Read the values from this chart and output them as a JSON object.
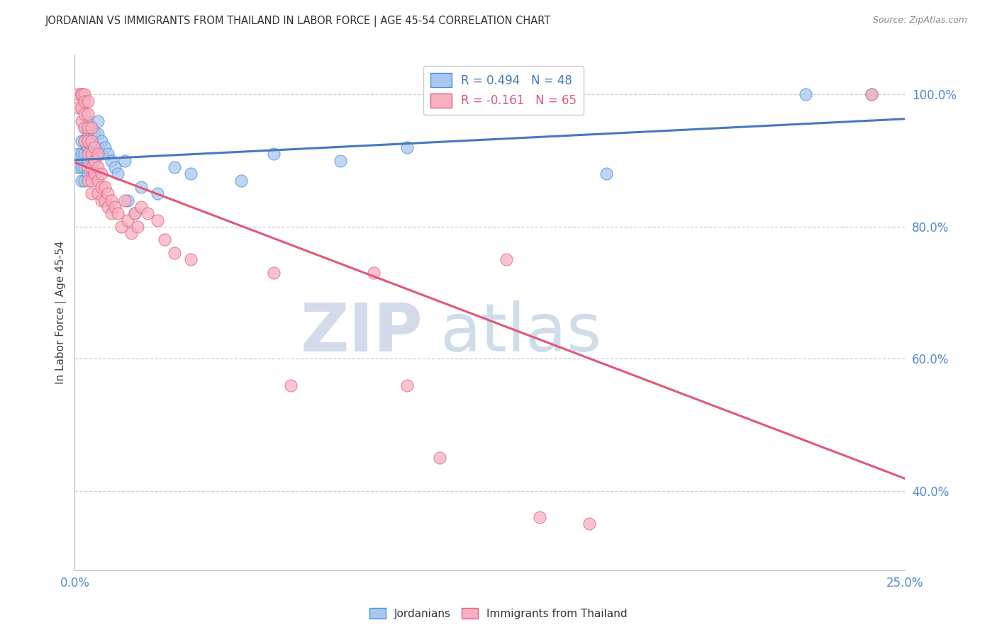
{
  "title": "JORDANIAN VS IMMIGRANTS FROM THAILAND IN LABOR FORCE | AGE 45-54 CORRELATION CHART",
  "source": "Source: ZipAtlas.com",
  "ylabel": "In Labor Force | Age 45-54",
  "xlim": [
    0.0,
    0.25
  ],
  "ylim": [
    0.28,
    1.06
  ],
  "xticks": [
    0.0,
    0.05,
    0.1,
    0.15,
    0.2,
    0.25
  ],
  "xtick_labels": [
    "0.0%",
    "",
    "",
    "",
    "",
    "25.0%"
  ],
  "yticks": [
    0.4,
    0.6,
    0.8,
    1.0
  ],
  "ytick_labels": [
    "40.0%",
    "60.0%",
    "80.0%",
    "100.0%"
  ],
  "blue_color": "#a8c8f0",
  "pink_color": "#f8b0c0",
  "blue_edge_color": "#5090d0",
  "pink_edge_color": "#e06080",
  "blue_line_color": "#4878c0",
  "pink_line_color": "#e05878",
  "legend_blue_text": "R = 0.494   N = 48",
  "legend_pink_text": "R = -0.161   N = 65",
  "watermark_zip": "ZIP",
  "watermark_atlas": "atlas",
  "blue_scatter": [
    [
      0.001,
      0.91
    ],
    [
      0.001,
      0.89
    ],
    [
      0.002,
      0.93
    ],
    [
      0.002,
      0.91
    ],
    [
      0.002,
      0.89
    ],
    [
      0.002,
      0.87
    ],
    [
      0.003,
      0.95
    ],
    [
      0.003,
      0.93
    ],
    [
      0.003,
      0.91
    ],
    [
      0.003,
      0.89
    ],
    [
      0.003,
      0.87
    ],
    [
      0.004,
      0.96
    ],
    [
      0.004,
      0.94
    ],
    [
      0.004,
      0.92
    ],
    [
      0.004,
      0.9
    ],
    [
      0.004,
      0.88
    ],
    [
      0.005,
      0.95
    ],
    [
      0.005,
      0.93
    ],
    [
      0.005,
      0.91
    ],
    [
      0.005,
      0.89
    ],
    [
      0.006,
      0.94
    ],
    [
      0.006,
      0.92
    ],
    [
      0.006,
      0.9
    ],
    [
      0.006,
      0.88
    ],
    [
      0.007,
      0.96
    ],
    [
      0.007,
      0.94
    ],
    [
      0.007,
      0.92
    ],
    [
      0.008,
      0.93
    ],
    [
      0.008,
      0.91
    ],
    [
      0.009,
      0.92
    ],
    [
      0.01,
      0.91
    ],
    [
      0.011,
      0.9
    ],
    [
      0.012,
      0.89
    ],
    [
      0.013,
      0.88
    ],
    [
      0.015,
      0.9
    ],
    [
      0.016,
      0.84
    ],
    [
      0.018,
      0.82
    ],
    [
      0.02,
      0.86
    ],
    [
      0.025,
      0.85
    ],
    [
      0.03,
      0.89
    ],
    [
      0.035,
      0.88
    ],
    [
      0.05,
      0.87
    ],
    [
      0.06,
      0.91
    ],
    [
      0.08,
      0.9
    ],
    [
      0.1,
      0.92
    ],
    [
      0.16,
      0.88
    ],
    [
      0.22,
      1.0
    ],
    [
      0.24,
      1.0
    ]
  ],
  "pink_scatter": [
    [
      0.001,
      1.0
    ],
    [
      0.001,
      0.98
    ],
    [
      0.002,
      1.0
    ],
    [
      0.002,
      1.0
    ],
    [
      0.002,
      1.0
    ],
    [
      0.002,
      1.0
    ],
    [
      0.002,
      0.98
    ],
    [
      0.002,
      0.96
    ],
    [
      0.003,
      1.0
    ],
    [
      0.003,
      0.99
    ],
    [
      0.003,
      0.97
    ],
    [
      0.003,
      0.95
    ],
    [
      0.003,
      0.93
    ],
    [
      0.004,
      0.99
    ],
    [
      0.004,
      0.97
    ],
    [
      0.004,
      0.95
    ],
    [
      0.004,
      0.93
    ],
    [
      0.004,
      0.91
    ],
    [
      0.004,
      0.89
    ],
    [
      0.004,
      0.87
    ],
    [
      0.005,
      0.95
    ],
    [
      0.005,
      0.93
    ],
    [
      0.005,
      0.91
    ],
    [
      0.005,
      0.89
    ],
    [
      0.005,
      0.87
    ],
    [
      0.005,
      0.85
    ],
    [
      0.006,
      0.92
    ],
    [
      0.006,
      0.9
    ],
    [
      0.006,
      0.88
    ],
    [
      0.007,
      0.91
    ],
    [
      0.007,
      0.89
    ],
    [
      0.007,
      0.87
    ],
    [
      0.007,
      0.85
    ],
    [
      0.008,
      0.88
    ],
    [
      0.008,
      0.86
    ],
    [
      0.008,
      0.84
    ],
    [
      0.009,
      0.86
    ],
    [
      0.009,
      0.84
    ],
    [
      0.01,
      0.85
    ],
    [
      0.01,
      0.83
    ],
    [
      0.011,
      0.84
    ],
    [
      0.011,
      0.82
    ],
    [
      0.012,
      0.83
    ],
    [
      0.013,
      0.82
    ],
    [
      0.014,
      0.8
    ],
    [
      0.015,
      0.84
    ],
    [
      0.016,
      0.81
    ],
    [
      0.017,
      0.79
    ],
    [
      0.018,
      0.82
    ],
    [
      0.019,
      0.8
    ],
    [
      0.02,
      0.83
    ],
    [
      0.022,
      0.82
    ],
    [
      0.025,
      0.81
    ],
    [
      0.027,
      0.78
    ],
    [
      0.03,
      0.76
    ],
    [
      0.035,
      0.75
    ],
    [
      0.06,
      0.73
    ],
    [
      0.065,
      0.56
    ],
    [
      0.09,
      0.73
    ],
    [
      0.1,
      0.56
    ],
    [
      0.11,
      0.45
    ],
    [
      0.13,
      0.75
    ],
    [
      0.14,
      0.36
    ],
    [
      0.155,
      0.35
    ],
    [
      0.24,
      1.0
    ]
  ]
}
